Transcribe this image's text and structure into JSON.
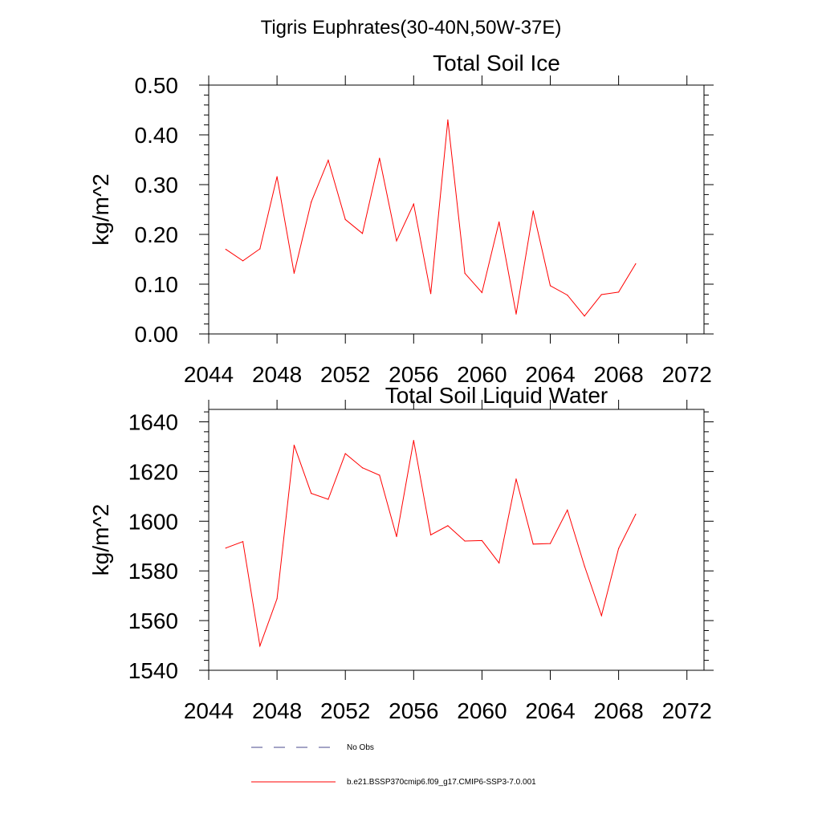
{
  "figure_title": "Tigris Euphrates(30-40N,50W-37E)",
  "colors": {
    "series": "#ff0000",
    "obs": "#4a4a8c",
    "axis": "#000000"
  },
  "legend": {
    "obs_label": "No Obs",
    "model_label": "b.e21.BSSP370cmip6.f09_g17.CMIP6-SSP3-7.0.001"
  },
  "chart_data": [
    {
      "type": "line",
      "title": "Total Soil Ice",
      "ylabel": "kg/m^2",
      "xlabel": "",
      "xlim": [
        2044,
        2073
      ],
      "ylim": [
        0,
        0.5
      ],
      "xticks": [
        2044,
        2048,
        2052,
        2056,
        2060,
        2064,
        2068,
        2072
      ],
      "xtick_labels": [
        "2044",
        "2048",
        "2052",
        "2056",
        "2060",
        "2064",
        "2068",
        "2072"
      ],
      "yticks": [
        0,
        0.1,
        0.2,
        0.3,
        0.4,
        0.5
      ],
      "ytick_labels": [
        "0.00",
        "0.10",
        "0.20",
        "0.30",
        "0.40",
        "0.50"
      ],
      "grid": false,
      "series": [
        {
          "name": "b.e21.BSSP370cmip6.f09_g17.CMIP6-SSP3-7.0.001",
          "x": [
            2045,
            2046,
            2047,
            2048,
            2049,
            2050,
            2051,
            2052,
            2053,
            2054,
            2055,
            2056,
            2057,
            2058,
            2059,
            2060,
            2061,
            2062,
            2063,
            2064,
            2065,
            2066,
            2067,
            2068,
            2069
          ],
          "y": [
            0.17,
            0.147,
            0.171,
            0.316,
            0.122,
            0.265,
            0.349,
            0.23,
            0.202,
            0.353,
            0.187,
            0.261,
            0.081,
            0.43,
            0.122,
            0.083,
            0.225,
            0.04,
            0.247,
            0.097,
            0.078,
            0.036,
            0.079,
            0.084,
            0.141
          ]
        }
      ]
    },
    {
      "type": "line",
      "title": "Total Soil Liquid Water",
      "ylabel": "kg/m^2",
      "xlabel": "",
      "xlim": [
        2044,
        2073
      ],
      "ylim": [
        1540,
        1645
      ],
      "xticks": [
        2044,
        2048,
        2052,
        2056,
        2060,
        2064,
        2068,
        2072
      ],
      "xtick_labels": [
        "2044",
        "2048",
        "2052",
        "2056",
        "2060",
        "2064",
        "2068",
        "2072"
      ],
      "yticks": [
        1540,
        1560,
        1580,
        1600,
        1620,
        1640
      ],
      "ytick_labels": [
        "1540",
        "1560",
        "1580",
        "1600",
        "1620",
        "1640"
      ],
      "grid": false,
      "series": [
        {
          "name": "b.e21.BSSP370cmip6.f09_g17.CMIP6-SSP3-7.0.001",
          "x": [
            2045,
            2046,
            2047,
            2048,
            2049,
            2050,
            2051,
            2052,
            2053,
            2054,
            2055,
            2056,
            2057,
            2058,
            2059,
            2060,
            2061,
            2062,
            2063,
            2064,
            2065,
            2066,
            2067,
            2068,
            2069
          ],
          "y": [
            1589.2,
            1591.8,
            1549.8,
            1568.8,
            1630.6,
            1611.2,
            1608.8,
            1627.2,
            1621.5,
            1618.5,
            1593.8,
            1632.5,
            1594.5,
            1598.2,
            1592.0,
            1592.2,
            1583.2,
            1617.0,
            1590.8,
            1591.0,
            1604.5,
            1582.0,
            1562.0,
            1589.0,
            1602.8
          ]
        }
      ]
    }
  ]
}
